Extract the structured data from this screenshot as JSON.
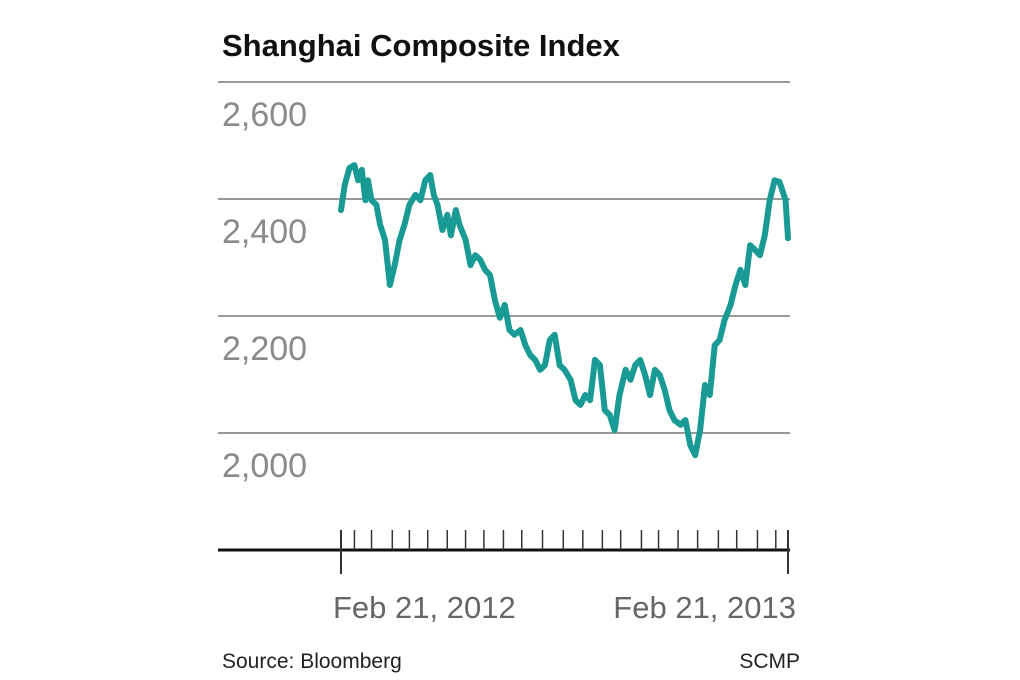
{
  "chart_data": {
    "type": "line",
    "title": "Shanghai Composite Index",
    "source": "Source: Bloomberg",
    "credit": "SCMP",
    "x": [
      0,
      3,
      7,
      11,
      14,
      17,
      20,
      22,
      25,
      29,
      32,
      36,
      40,
      44,
      48,
      52,
      56,
      61,
      65,
      69,
      73,
      76,
      79,
      83,
      87,
      90,
      94,
      97,
      102,
      106,
      110,
      114,
      118,
      122,
      126,
      130,
      134,
      138,
      142,
      147,
      151,
      155,
      159,
      163,
      167,
      171,
      175,
      179,
      183,
      188,
      192,
      196,
      200,
      204,
      208,
      212,
      216,
      220,
      224,
      228,
      233,
      237,
      241,
      245,
      249,
      253,
      257,
      261,
      265,
      269,
      273,
      278,
      282,
      286,
      290,
      294,
      298,
      302,
      306,
      310,
      314,
      319,
      323,
      327,
      331,
      335,
      339,
      343,
      347,
      351,
      355,
      359,
      364,
      366
    ],
    "series": [
      {
        "name": "Shanghai Composite Index",
        "color": "#1a9a94",
        "values": [
          2381,
          2424,
          2453,
          2458,
          2432,
          2450,
          2398,
          2432,
          2398,
          2390,
          2356,
          2330,
          2253,
          2287,
          2330,
          2356,
          2390,
          2407,
          2398,
          2432,
          2441,
          2407,
          2390,
          2347,
          2373,
          2338,
          2381,
          2356,
          2330,
          2287,
          2304,
          2296,
          2279,
          2270,
          2227,
          2197,
          2219,
          2176,
          2168,
          2176,
          2150,
          2133,
          2125,
          2108,
          2116,
          2159,
          2168,
          2116,
          2108,
          2091,
          2056,
          2048,
          2065,
          2056,
          2125,
          2116,
          2039,
          2031,
          2005,
          2065,
          2108,
          2091,
          2116,
          2125,
          2099,
          2065,
          2108,
          2099,
          2074,
          2039,
          2022,
          2014,
          2022,
          1979,
          1962,
          2005,
          2082,
          2065,
          2150,
          2159,
          2193,
          2219,
          2253,
          2279,
          2253,
          2321,
          2313,
          2304,
          2338,
          2398,
          2432,
          2429,
          2398,
          2333
        ]
      }
    ],
    "xlim": [
      0,
      366
    ],
    "xticks": [
      {
        "value": 0,
        "label": "Feb 21, 2012"
      },
      {
        "value": 366,
        "label": "Feb 21, 2013"
      }
    ],
    "minor_xticks": [
      11,
      25,
      42,
      56,
      71,
      87,
      102,
      117,
      133,
      148,
      165,
      182,
      198,
      214,
      229,
      246,
      260,
      276,
      292,
      309,
      324,
      341,
      356
    ],
    "ylim": [
      1800,
      2600
    ],
    "yticks": [
      {
        "value": 2000,
        "label": "2,000"
      },
      {
        "value": 2200,
        "label": "2,200"
      },
      {
        "value": 2400,
        "label": "2,400"
      },
      {
        "value": 2600,
        "label": "2,600"
      }
    ],
    "grid": true
  }
}
